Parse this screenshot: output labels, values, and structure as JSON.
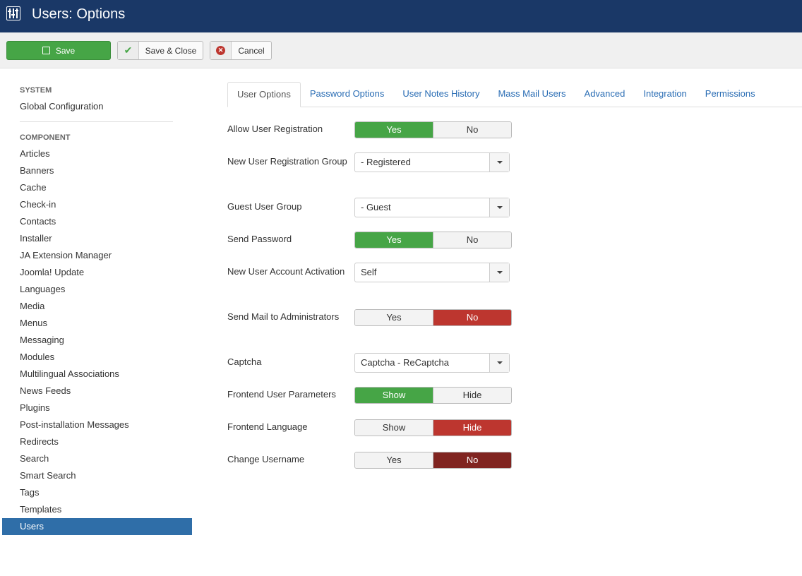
{
  "header": {
    "title": "Users: Options",
    "icon": "sliders-icon"
  },
  "toolbar": {
    "save": "Save",
    "save_close": "Save & Close",
    "cancel": "Cancel"
  },
  "sidebar": {
    "system_heading": "SYSTEM",
    "global": "Global Configuration",
    "component_heading": "COMPONENT",
    "items": [
      "Articles",
      "Banners",
      "Cache",
      "Check-in",
      "Contacts",
      "Installer",
      "JA Extension Manager",
      "Joomla! Update",
      "Languages",
      "Media",
      "Menus",
      "Messaging",
      "Modules",
      "Multilingual Associations",
      "News Feeds",
      "Plugins",
      "Post-installation Messages",
      "Redirects",
      "Search",
      "Smart Search",
      "Tags",
      "Templates",
      "Users"
    ],
    "active": "Users"
  },
  "tabs": [
    "User Options",
    "Password Options",
    "User Notes History",
    "Mass Mail Users",
    "Advanced",
    "Integration",
    "Permissions"
  ],
  "fields": [
    {
      "label": "Allow User Registration",
      "type": "toggle",
      "options": [
        "Yes",
        "No"
      ],
      "selected": "Yes"
    },
    {
      "label": "New User Registration Group",
      "type": "select",
      "value": "- Registered"
    },
    {
      "label": "Guest User Group",
      "type": "select",
      "value": "- Guest"
    },
    {
      "label": "Send Password",
      "type": "toggle",
      "options": [
        "Yes",
        "No"
      ],
      "selected": "Yes"
    },
    {
      "label": "New User Account Activation",
      "type": "select",
      "value": "Self"
    },
    {
      "label": "Send Mail to Administrators",
      "type": "toggle",
      "options": [
        "Yes",
        "No"
      ],
      "selected": "No"
    },
    {
      "label": "Captcha",
      "type": "select",
      "value": "Captcha - ReCaptcha"
    },
    {
      "label": "Frontend User Parameters",
      "type": "toggle",
      "options": [
        "Show",
        "Hide"
      ],
      "selected": "Show"
    },
    {
      "label": "Frontend Language",
      "type": "toggle",
      "options": [
        "Show",
        "Hide"
      ],
      "selected": "Hide"
    },
    {
      "label": "Change Username",
      "type": "toggle",
      "options": [
        "Yes",
        "No"
      ],
      "selected": "No",
      "selected_style": "dark"
    }
  ],
  "colors": {
    "header": "#1a3867",
    "green": "#46a546",
    "red": "#bd362f",
    "dark_red": "#802420",
    "link": "#2a6db4",
    "active_sidebar": "#2f6ea8"
  }
}
